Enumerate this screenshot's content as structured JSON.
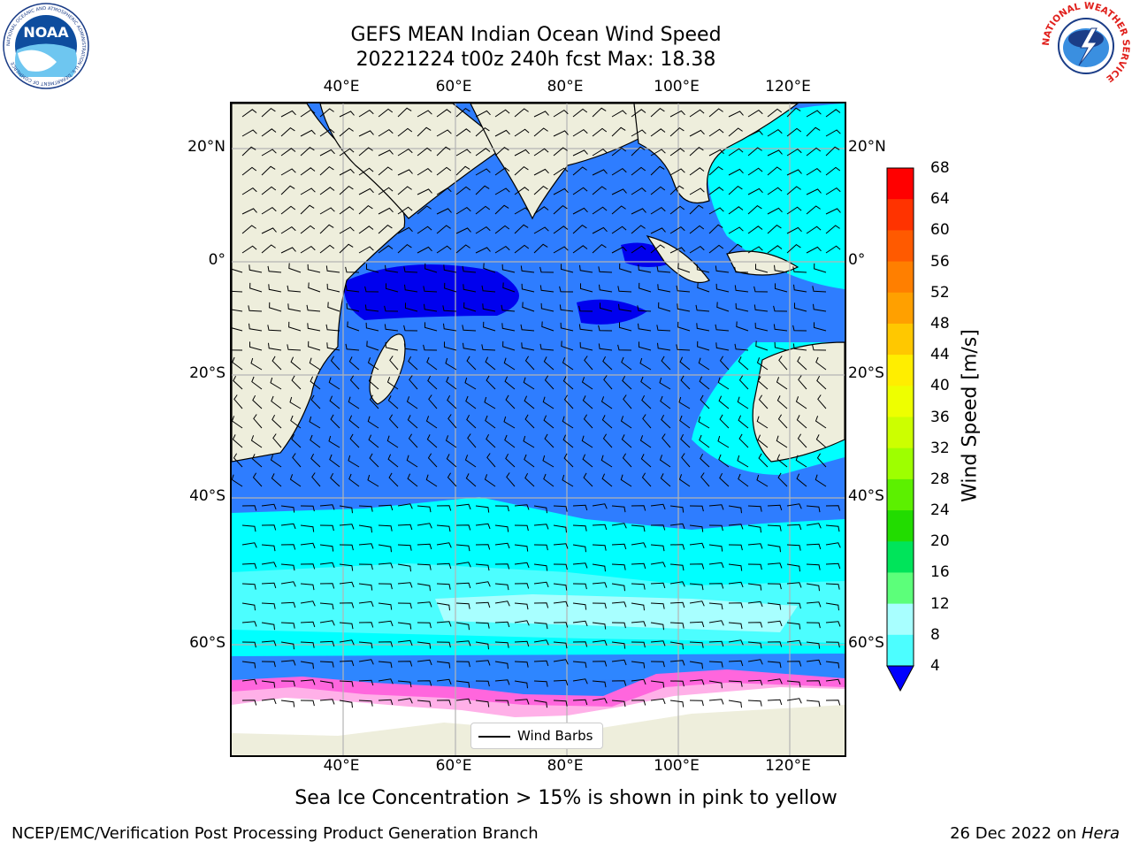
{
  "header": {
    "title_line1": "GEFS MEAN Indian Ocean Wind Speed",
    "title_line2": "20221224 t00z 240h fcst   Max: 18.38"
  },
  "logos": {
    "left_text": "NOAA",
    "left_ring_text": "NATIONAL OCEANIC AND ATMOSPHERIC ADMINISTRATION U.S. DEPARTMENT OF COMMERCE",
    "right_ring_text": "NATIONAL WEATHER SERVICE"
  },
  "map": {
    "lon_ticks": [
      "40°E",
      "60°E",
      "80°E",
      "100°E",
      "120°E"
    ],
    "lat_ticks": [
      "20°N",
      "0°",
      "20°S",
      "40°S",
      "60°S"
    ],
    "legend_label": "Wind Barbs",
    "colors": {
      "land": "#eeeedc",
      "ice_free_land": "#ffffff",
      "sea_ice": "#ff66dd"
    }
  },
  "colorbar": {
    "label": "Wind Speed [m/s]",
    "ticks": [
      "68",
      "64",
      "60",
      "56",
      "52",
      "48",
      "44",
      "40",
      "36",
      "32",
      "28",
      "24",
      "20",
      "16",
      "12",
      "8",
      "4"
    ],
    "colors": [
      "#ff0000",
      "#ff3300",
      "#ff5a00",
      "#ff7f00",
      "#ffa000",
      "#ffc800",
      "#ffee00",
      "#eeff00",
      "#ccff00",
      "#9eff00",
      "#5cf000",
      "#22dc00",
      "#00e45a",
      "#5cff7a",
      "#a8ffff",
      "#4cfeff",
      "#00ffff",
      "#0090ff",
      "#1a6bff"
    ],
    "extend_color": "#0000ff"
  },
  "caption": "Sea Ice Concentration > 15% is shown in pink to yellow",
  "footer": {
    "left": "NCEP/EMC/Verification Post Processing Product Generation Branch",
    "date": "26 Dec 2022 on ",
    "host": "Hera"
  }
}
